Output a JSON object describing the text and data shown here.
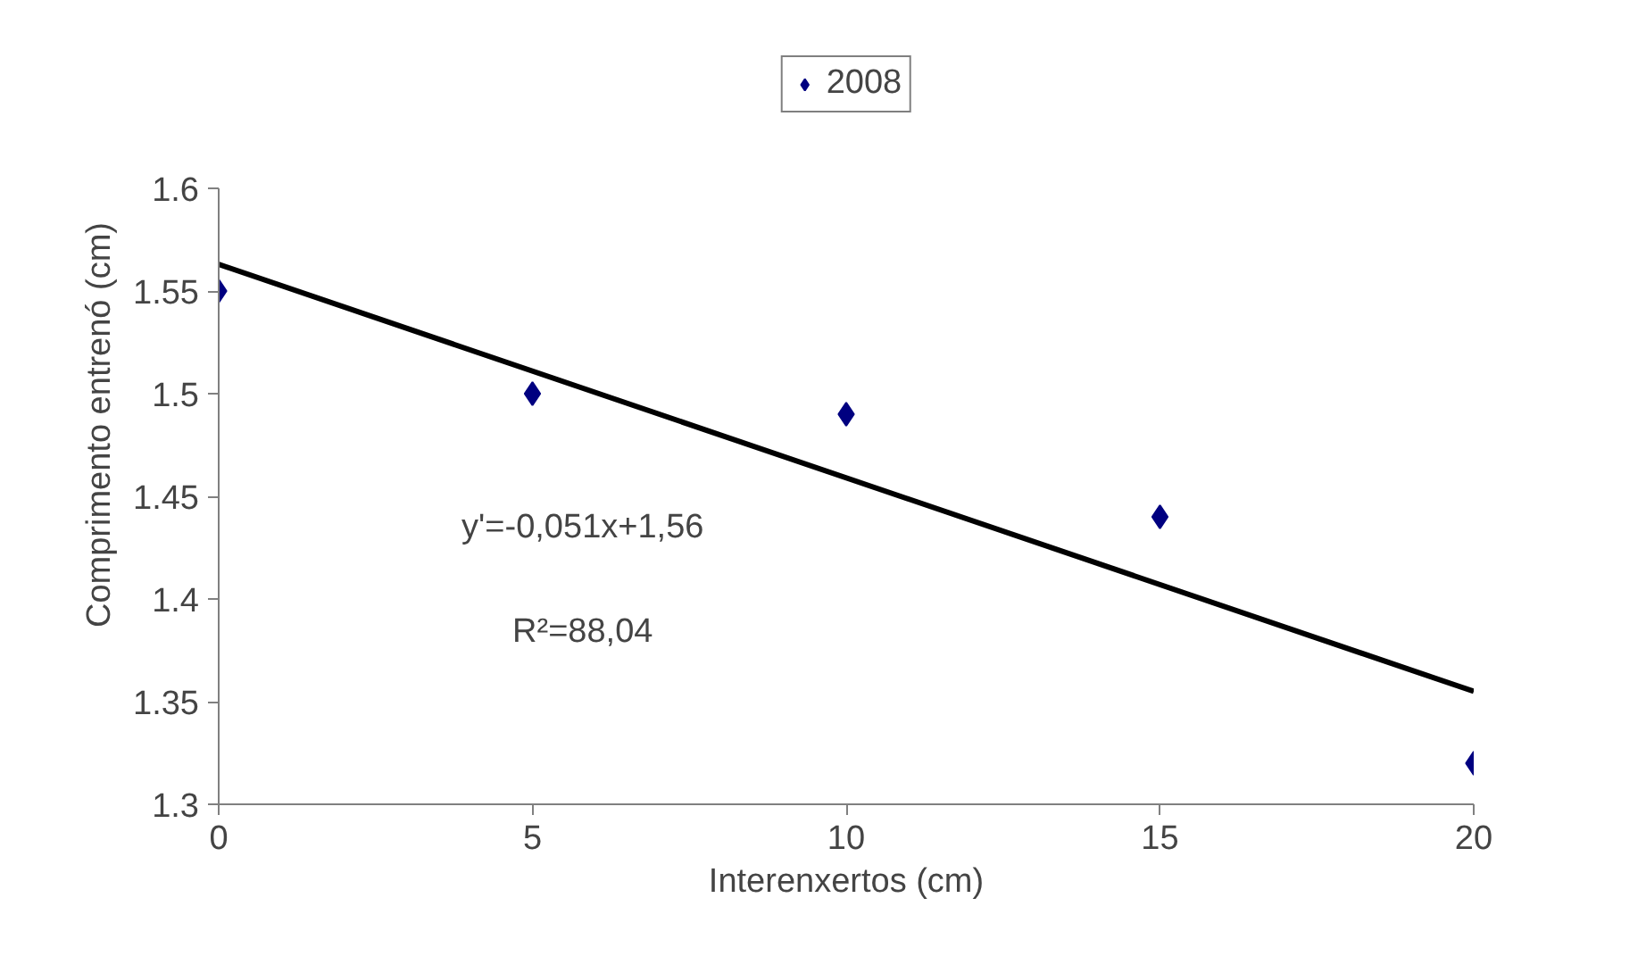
{
  "chart_data": {
    "type": "scatter",
    "xlabel": "Interenxertos (cm)",
    "ylabel": "Comprimento entrenó (cm)",
    "annotations": [
      "y'=-0,051x+1,56",
      "R²=88,04"
    ],
    "xlim": [
      0,
      20
    ],
    "xticks": [
      0,
      5,
      10,
      15,
      20
    ],
    "ylim": [
      1.3,
      1.6
    ],
    "yticks": [
      1.3,
      1.35,
      1.4,
      1.45,
      1.5,
      1.55,
      1.6
    ],
    "grid": false,
    "legend": "top",
    "series": [
      {
        "name": "2008",
        "color": "#000080",
        "marker": "diamond",
        "x": [
          0,
          5,
          10,
          15,
          20
        ],
        "values": [
          1.55,
          1.5,
          1.49,
          1.44,
          1.32
        ]
      },
      {
        "type": "line",
        "color": "#000000",
        "x": [
          0,
          20
        ],
        "values": [
          1.563,
          1.355
        ],
        "line_style": "solid"
      }
    ]
  }
}
